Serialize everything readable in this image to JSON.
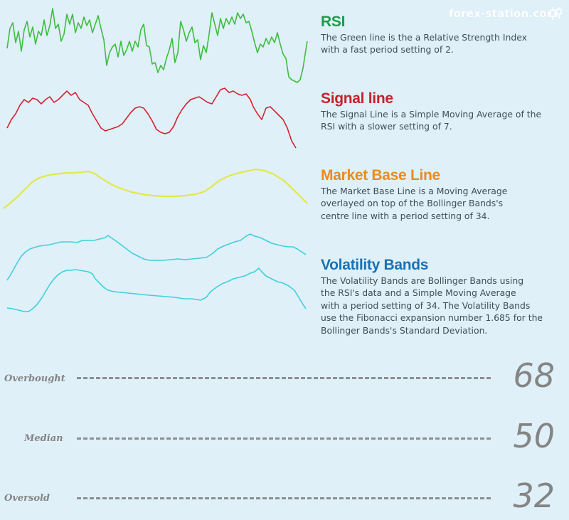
{
  "brand": {
    "text": "forex-station.com",
    "icon": "candlestick-icon"
  },
  "sections": [
    {
      "title": "RSI",
      "color": "#1f9a4a",
      "lines": [
        "The Green line is the a Relative Strength Index",
        "with a fast period setting of 2."
      ]
    },
    {
      "title": "Signal line",
      "color": "#c8202a",
      "lines": [
        "The Signal Line is a Simple Moving Average of the",
        "RSI with a slower setting of 7."
      ]
    },
    {
      "title": "Market Base Line",
      "color": "#ec8a1e",
      "lines": [
        "The Market Base Line is a Moving Average",
        "overlayed on top of the Bollinger Bands's",
        "centre line with a period setting of 34."
      ]
    },
    {
      "title": "Volatility Bands",
      "color": "#1972b4",
      "lines": [
        "The Volatility Bands are Bollinger Bands using",
        "the RSI's data and a Simple Moving Average",
        "with a period setting of 34. The Volatility Bands",
        "use the Fibonacci expansion number 1.685 for the",
        "Bollinger Bands's Standard Deviation."
      ]
    }
  ],
  "levels": [
    {
      "label": "Overbought",
      "value": "68"
    },
    {
      "label": "Median",
      "value": "50"
    },
    {
      "label": "Oversold",
      "value": "32"
    }
  ],
  "line_colors": {
    "rsi": "#3fbd3f",
    "signal": "#d4222c",
    "base": "#e3e84a",
    "bands": "#3fd0dc"
  }
}
